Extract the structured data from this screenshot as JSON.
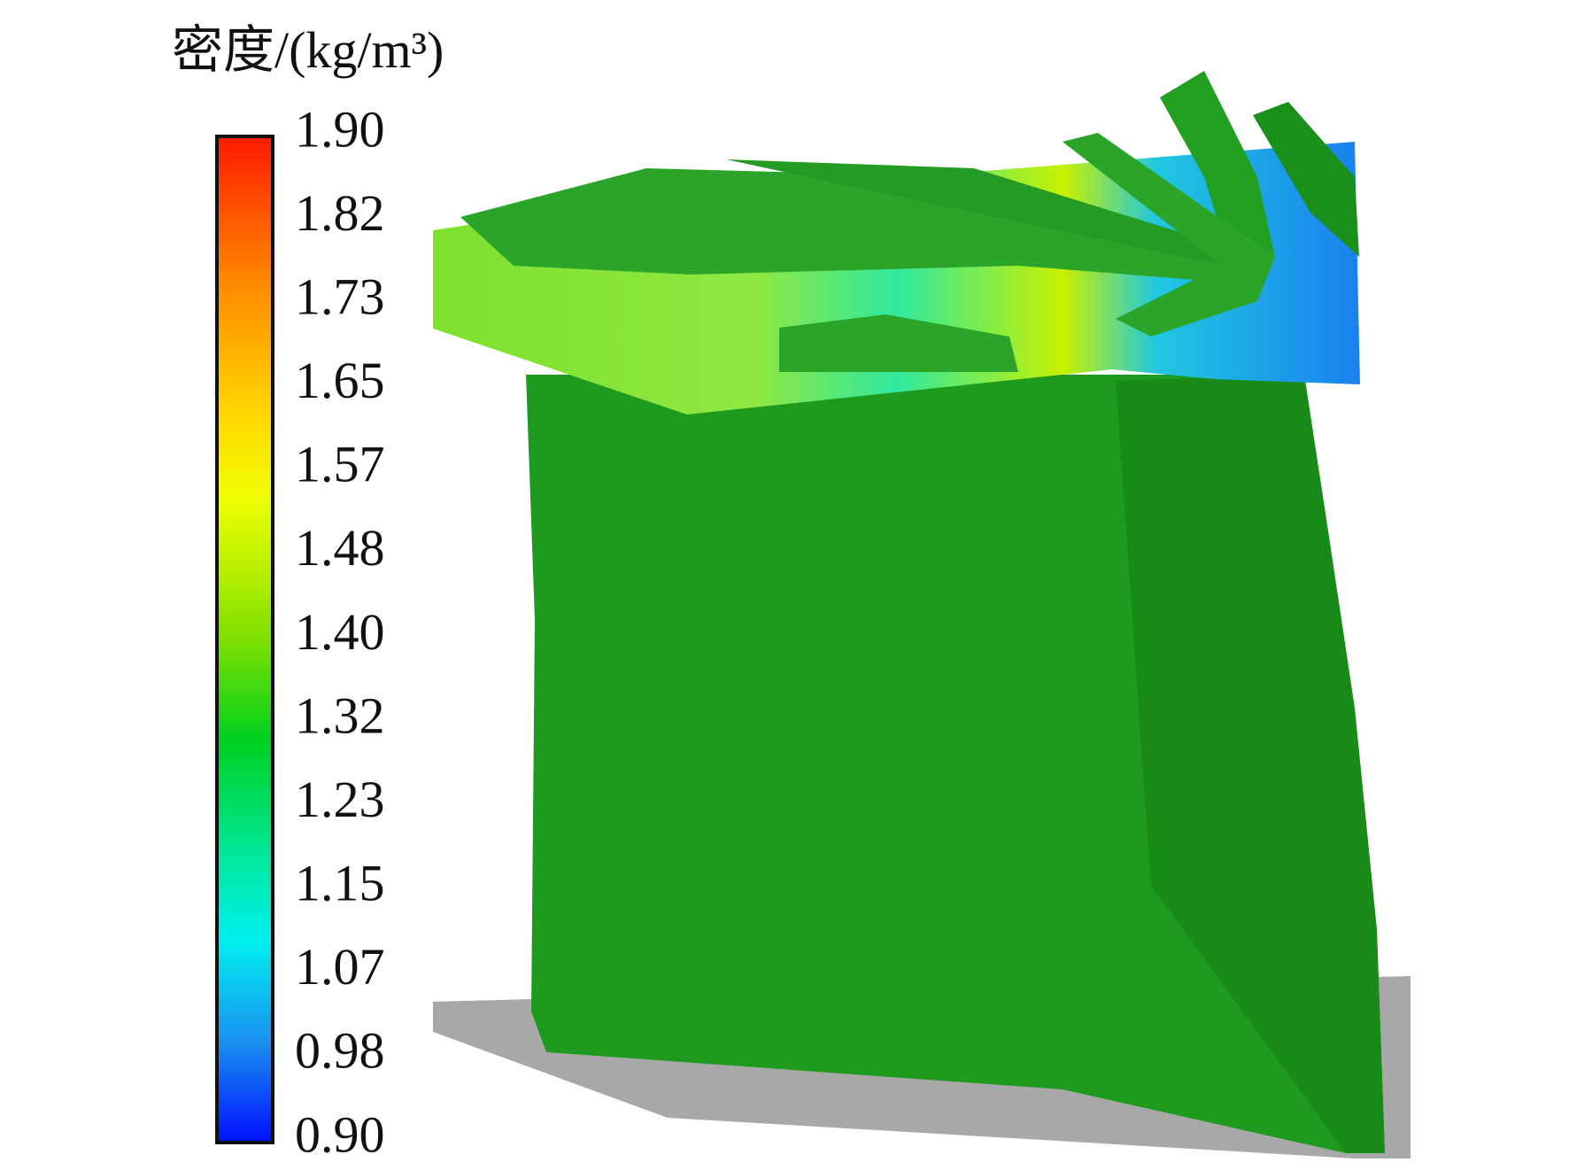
{
  "colorbar": {
    "title": "密度/(kg/m³)",
    "ticks": [
      "1.90",
      "1.82",
      "1.73",
      "1.65",
      "1.57",
      "1.48",
      "1.40",
      "1.32",
      "1.23",
      "1.15",
      "1.07",
      "0.98",
      "0.90"
    ]
  }
}
